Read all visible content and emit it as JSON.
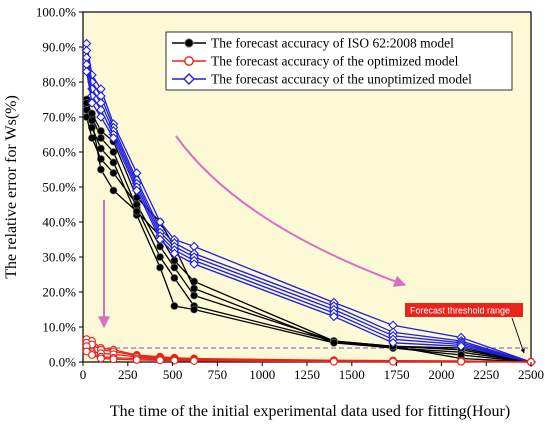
{
  "chart_data": {
    "type": "line",
    "xlabel": "The time of the initial experimental data used for fitting(Hour)",
    "ylabel": "The relative error for Ws(%)",
    "xlim": [
      0,
      2500
    ],
    "ylim": [
      0,
      100
    ],
    "x_ticks": [
      "0",
      "250",
      "500",
      "750",
      "1000",
      "1250",
      "1500",
      "1750",
      "2000",
      "2250",
      "2500"
    ],
    "y_ticks": [
      "0.0%",
      "10.0%",
      "20.0%",
      "30.0%",
      "40.0%",
      "50.0%",
      "60.0%",
      "70.0%",
      "80.0%",
      "90.0%",
      "100.0%"
    ],
    "threshold": 4,
    "annotation": "Forecast threshold range",
    "grid": false,
    "legend_position": "top-right",
    "legend": [
      "The forecast accuracy of  ISO 62:2008 model",
      "The forecast accuracy of the optimized model",
      "The forecast accuracy of the unoptimized model"
    ],
    "series": [
      {
        "group": "iso",
        "color": "#000000",
        "marker": "circle",
        "lines": [
          {
            "x": [
              20,
              50,
              100,
              170,
              300,
              430,
              510,
              620,
              1400,
              1730,
              2110,
              2500
            ],
            "y": [
              75,
              70,
              64,
              60,
              44,
              30,
              24,
              16,
              6,
              4.5,
              3.5,
              0
            ]
          },
          {
            "x": [
              20,
              50,
              100,
              170,
              300,
              430,
              510,
              620,
              1400,
              1730,
              2110,
              2500
            ],
            "y": [
              73,
              67,
              61,
              57,
              42,
              27,
              16,
              15,
              5.5,
              4,
              2.8,
              0
            ]
          },
          {
            "x": [
              20,
              50,
              100,
              170,
              300,
              430,
              510,
              620,
              1400,
              1730,
              2110,
              2500
            ],
            "y": [
              70,
              64,
              58,
              54,
              45,
              33,
              27,
              19,
              6,
              4.5,
              1,
              0
            ]
          },
          {
            "x": [
              20,
              50,
              100,
              170,
              300,
              430,
              510,
              620,
              1400,
              1730,
              2110,
              2500
            ],
            "y": [
              72,
              69,
              55,
              49,
              43,
              36,
              29,
              23,
              6,
              4,
              2,
              0
            ]
          },
          {
            "x": [
              20,
              50,
              100,
              170,
              300,
              430,
              510,
              620,
              1400,
              1730,
              2110,
              2500
            ],
            "y": [
              74,
              71,
              66,
              63,
              47,
              40,
              33,
              21,
              5.5,
              4.5,
              4,
              0
            ]
          }
        ]
      },
      {
        "group": "optimized",
        "color": "#e8241c",
        "marker": "circle",
        "lines": [
          {
            "x": [
              20,
              50,
              100,
              170,
              300,
              430,
              510,
              620,
              1400,
              1730,
              2110,
              2500
            ],
            "y": [
              6.5,
              6,
              4,
              3.5,
              2,
              1.5,
              1.2,
              1,
              0.5,
              0.4,
              0.3,
              0
            ]
          },
          {
            "x": [
              20,
              50,
              100,
              170,
              300,
              430,
              510,
              620,
              1400,
              1730,
              2110,
              2500
            ],
            "y": [
              5.5,
              5,
              3.5,
              3,
              1.8,
              1.2,
              1,
              0.8,
              0.4,
              0.3,
              0.2,
              0
            ]
          },
          {
            "x": [
              20,
              50,
              100,
              170,
              300,
              430,
              510,
              620,
              1400,
              1730,
              2110,
              2500
            ],
            "y": [
              3.5,
              3,
              2.5,
              2.2,
              1.5,
              1,
              0.8,
              0.6,
              0.3,
              0.2,
              0.2,
              0
            ]
          },
          {
            "x": [
              20,
              50,
              100,
              170,
              300,
              430,
              510,
              620,
              1400,
              1730,
              2110,
              2500
            ],
            "y": [
              4.5,
              2.5,
              1.5,
              1.2,
              1,
              0.8,
              0.6,
              0.5,
              0.2,
              0.2,
              0.1,
              0
            ]
          },
          {
            "x": [
              20,
              50,
              100,
              170,
              300,
              430,
              510,
              620,
              1400,
              1730,
              2110,
              2500
            ],
            "y": [
              3,
              2,
              1,
              0.8,
              0.6,
              0.5,
              0.4,
              0.3,
              0.1,
              0.1,
              0.1,
              0
            ]
          }
        ]
      },
      {
        "group": "unoptimized",
        "color": "#1f1fe0",
        "marker": "diamond",
        "lines": [
          {
            "x": [
              20,
              50,
              100,
              170,
              300,
              430,
              510,
              620,
              1400,
              1730,
              2110,
              2500
            ],
            "y": [
              91,
              82,
              78,
              68,
              54,
              40,
              35,
              33,
              17,
              10.5,
              7,
              0
            ]
          },
          {
            "x": [
              20,
              50,
              100,
              170,
              300,
              430,
              510,
              620,
              1400,
              1730,
              2110,
              2500
            ],
            "y": [
              89,
              80,
              76,
              67,
              52,
              38,
              34,
              31,
              16,
              8.5,
              6,
              0
            ]
          },
          {
            "x": [
              20,
              50,
              100,
              170,
              300,
              430,
              510,
              620,
              1400,
              1730,
              2110,
              2500
            ],
            "y": [
              87,
              78,
              74,
              66,
              51,
              37,
              33,
              30,
              15,
              7.5,
              5.5,
              0
            ]
          },
          {
            "x": [
              20,
              50,
              100,
              170,
              300,
              430,
              510,
              620,
              1400,
              1730,
              2110,
              2500
            ],
            "y": [
              85,
              76,
              72,
              65,
              50,
              36,
              32,
              29,
              14,
              6.5,
              5,
              0
            ]
          },
          {
            "x": [
              20,
              50,
              100,
              170,
              300,
              430,
              510,
              620,
              1400,
              1730,
              2110,
              2500
            ],
            "y": [
              83,
              74,
              70,
              64,
              49,
              35,
              31,
              28,
              13,
              5.5,
              4.5,
              0
            ]
          }
        ]
      }
    ]
  }
}
